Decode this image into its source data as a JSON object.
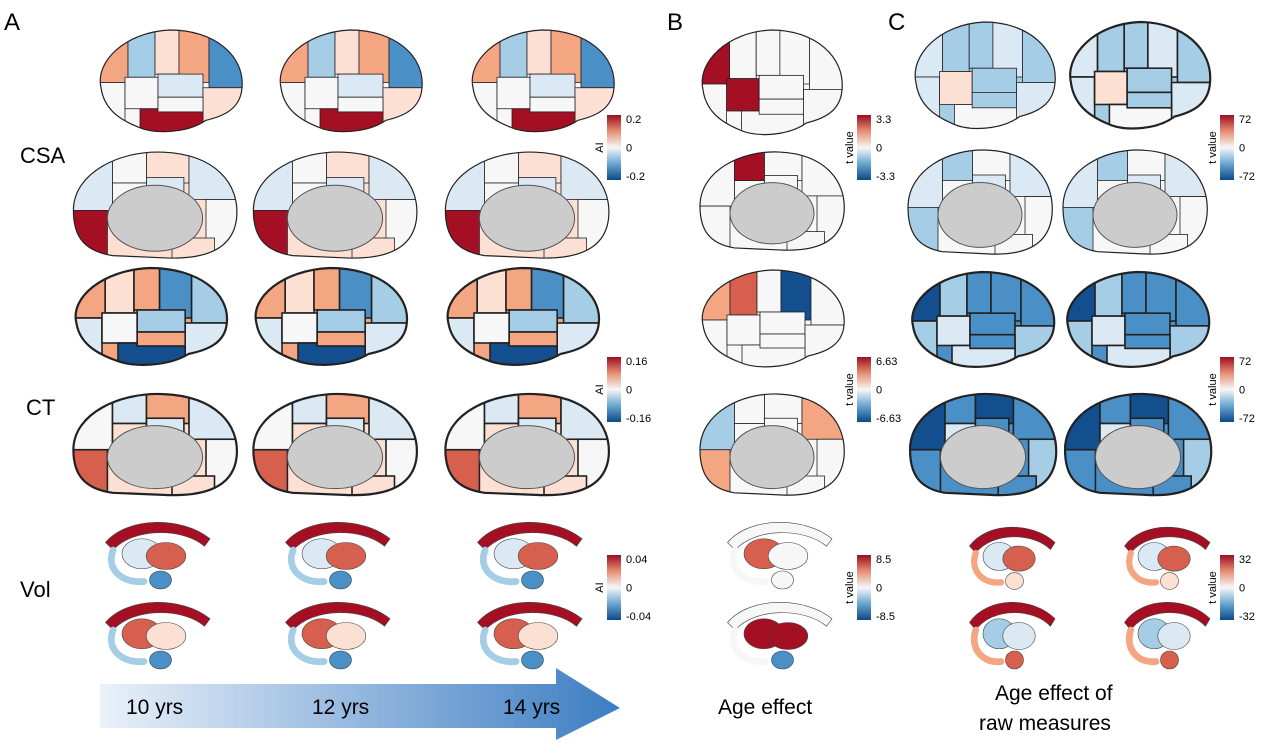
{
  "panels": {
    "a": "A",
    "b": "B",
    "c": "C"
  },
  "rows": {
    "csa": "CSA",
    "ct": "CT",
    "vol": "Vol"
  },
  "timeline": {
    "labels": [
      "10 yrs",
      "12 yrs",
      "14 yrs"
    ],
    "arrow_colors": [
      "#eaf1f9",
      "#3c7dc3"
    ]
  },
  "captions": {
    "b": "Age effect",
    "c_line1": "Age effect of",
    "c_line2": "raw measures"
  },
  "colorbars": [
    {
      "key": "csa_a",
      "axis": "AI",
      "max": "0.2",
      "mid": "0",
      "min": "-0.2"
    },
    {
      "key": "csa_b",
      "axis": "t value",
      "max": "3.3",
      "mid": "0",
      "min": "-3.3"
    },
    {
      "key": "csa_c",
      "axis": "t value",
      "max": "72",
      "mid": "0",
      "min": "-72"
    },
    {
      "key": "ct_a",
      "axis": "AI",
      "max": "0.16",
      "mid": "0",
      "min": "-0.16"
    },
    {
      "key": "ct_b",
      "axis": "t value",
      "max": "6.63",
      "mid": "0",
      "min": "-6.63"
    },
    {
      "key": "ct_c",
      "axis": "t value",
      "max": "72",
      "mid": "0",
      "min": "-72"
    },
    {
      "key": "vol_a",
      "axis": "AI",
      "max": "0.04",
      "mid": "0",
      "min": "-0.04"
    },
    {
      "key": "vol_b",
      "axis": "t value",
      "max": "8.5",
      "mid": "0",
      "min": "-8.5"
    },
    {
      "key": "vol_c",
      "axis": "t value",
      "max": "32",
      "mid": "0",
      "min": "-32"
    }
  ],
  "colormap": [
    "#0b4a87",
    "#6aa6d2",
    "#f7f7f7",
    "#e58f73",
    "#9c0e22"
  ],
  "colors": {
    "medial_wall": "#cccccc",
    "outline": "#333333",
    "deep_red": "#a50f23",
    "red": "#d6604d",
    "light_red": "#f4a582",
    "pale_red": "#fbe0d3",
    "white": "#f7f7f7",
    "pale_blue": "#dbe9f4",
    "light_blue": "#a6cde6",
    "blue": "#4a8fc6",
    "deep_blue": "#134f8f"
  }
}
